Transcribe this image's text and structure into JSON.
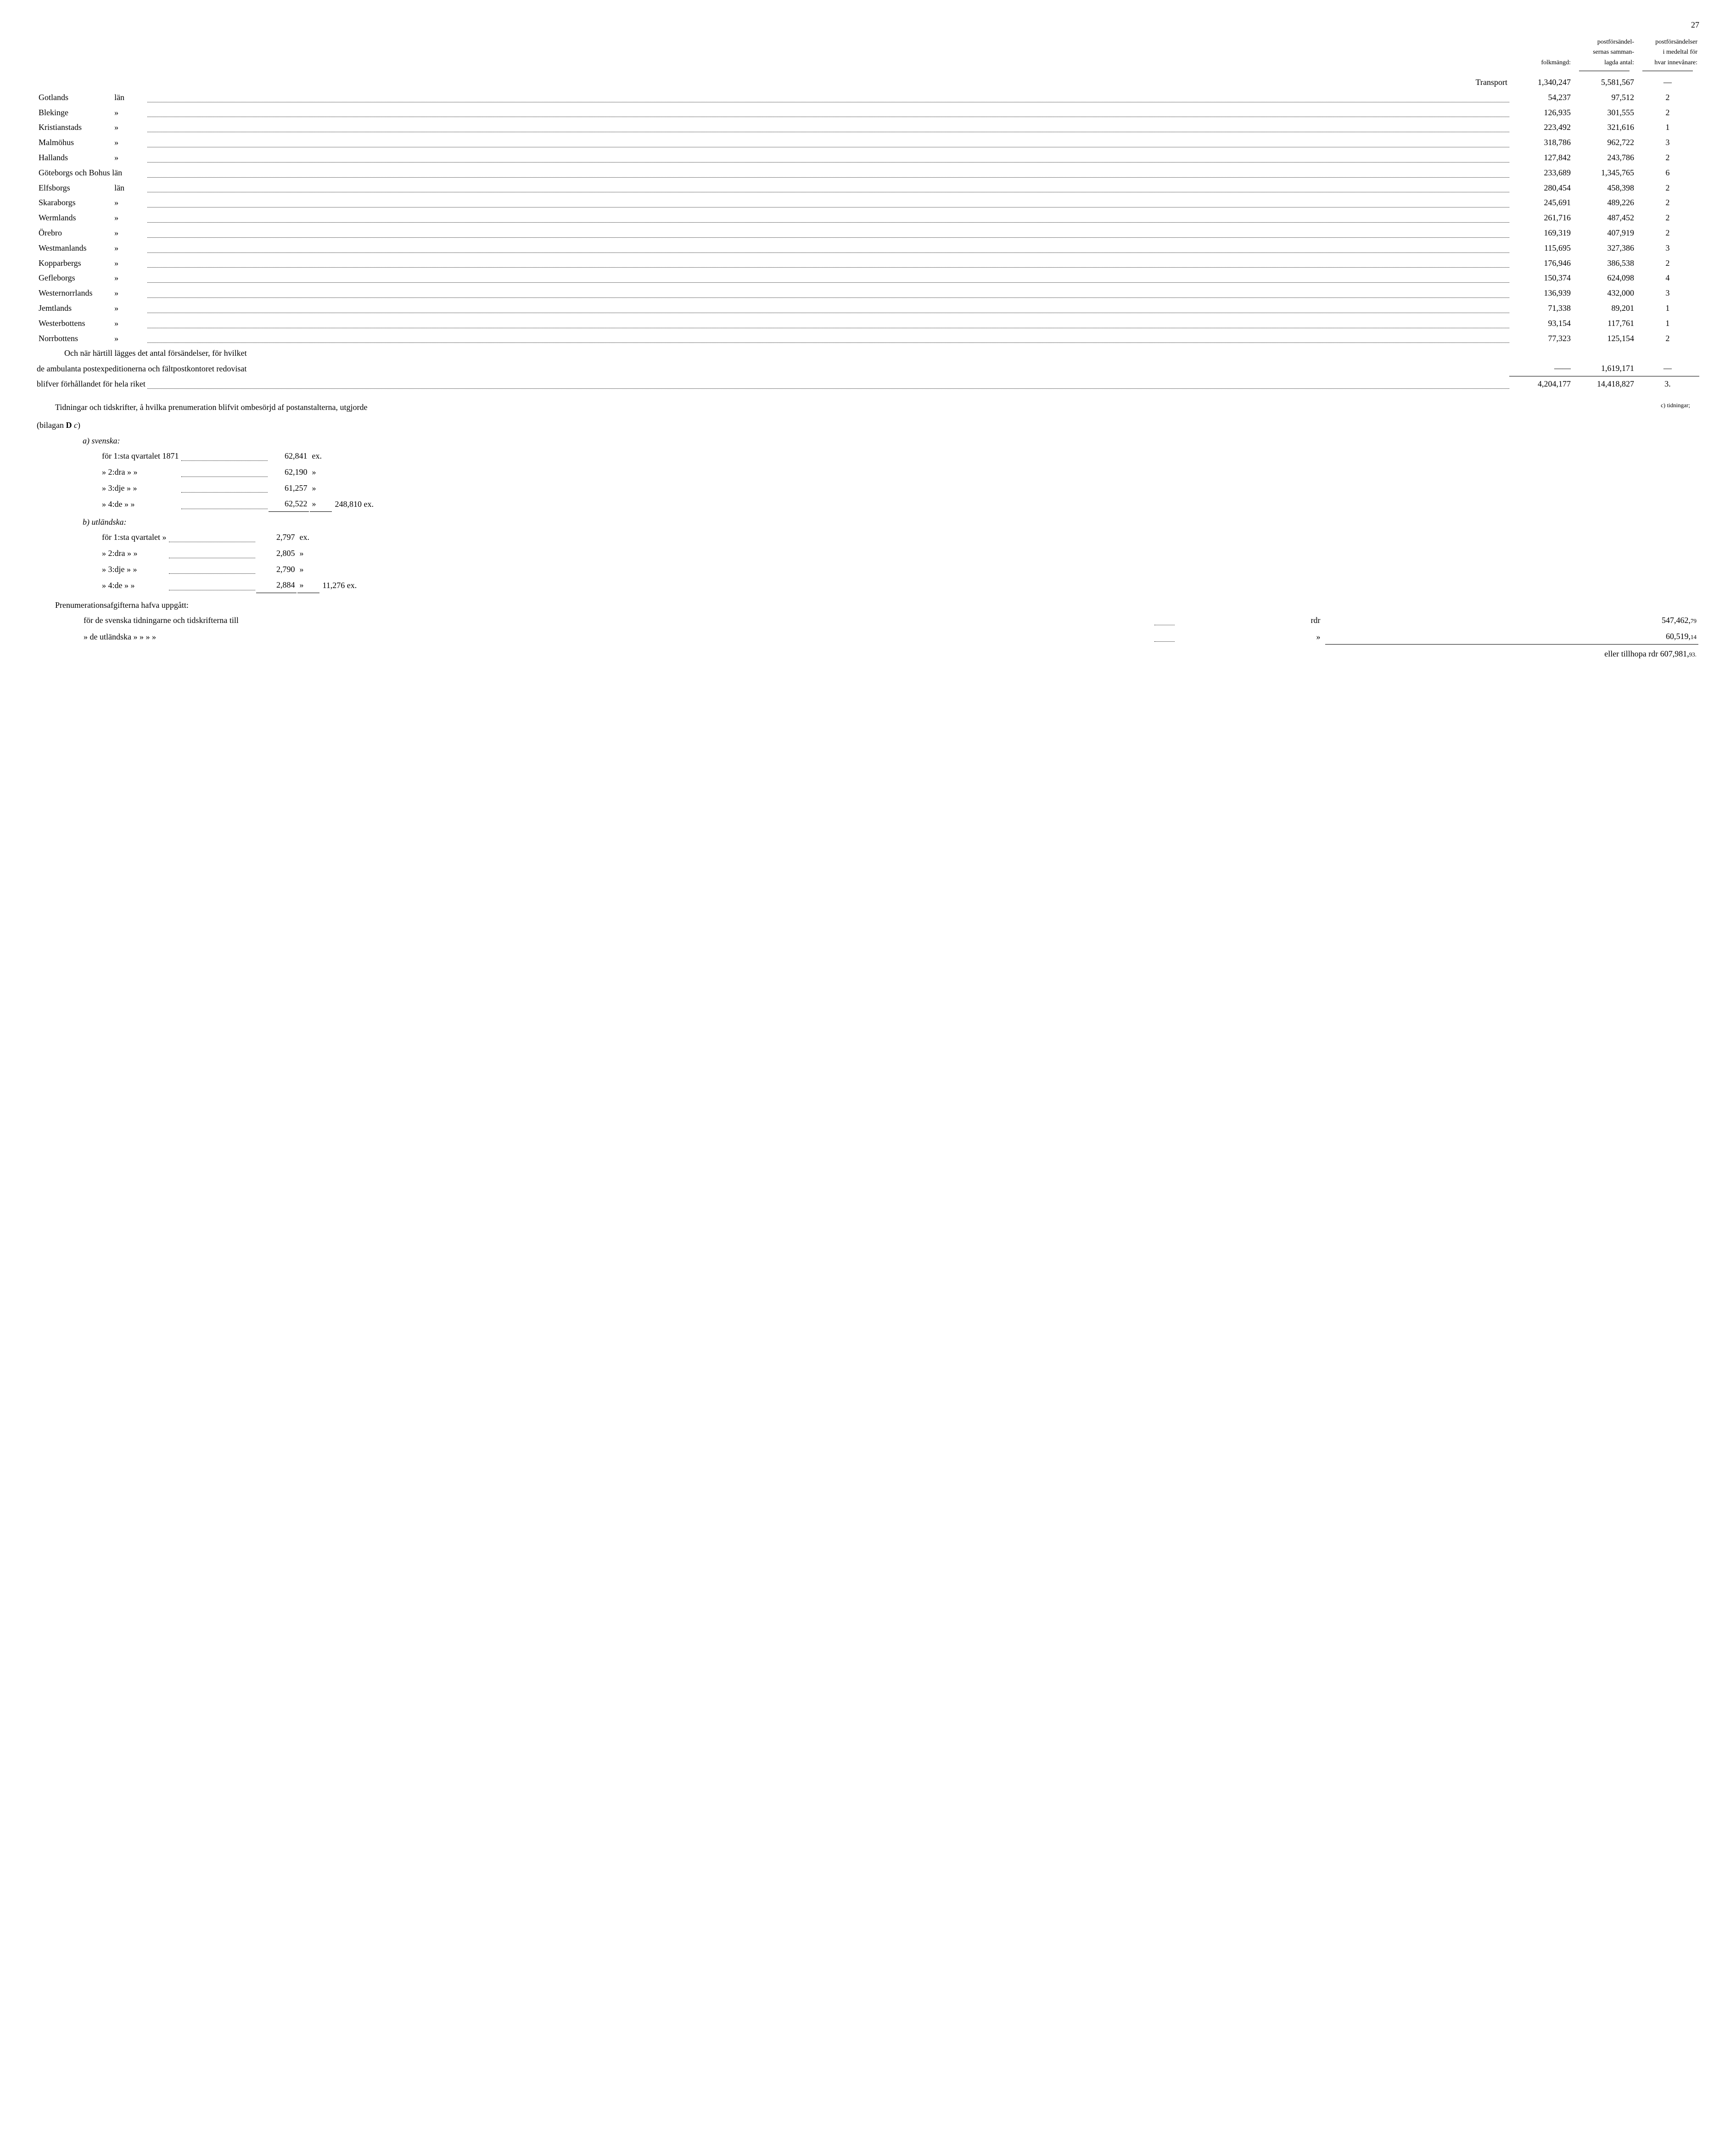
{
  "page_number": "27",
  "headers": {
    "col1": "folkmängd:",
    "col2": "postförsändel-\nsernas samman-\nlagda antal:",
    "col3": "postförsändelser\ni medeltal för\nhvar innevånare:"
  },
  "transport": {
    "label": "Transport",
    "c1": "1,340,247",
    "c2": "5,581,567",
    "c3": "—"
  },
  "rows": [
    {
      "a": "Gotlands",
      "b": "län",
      "c1": "54,237",
      "c2": "97,512",
      "c3": "2"
    },
    {
      "a": "Blekinge",
      "b": "»",
      "c1": "126,935",
      "c2": "301,555",
      "c3": "2"
    },
    {
      "a": "Kristianstads",
      "b": "»",
      "c1": "223,492",
      "c2": "321,616",
      "c3": "1"
    },
    {
      "a": "Malmöhus",
      "b": "»",
      "c1": "318,786",
      "c2": "962,722",
      "c3": "3"
    },
    {
      "a": "Hallands",
      "b": "»",
      "c1": "127,842",
      "c2": "243,786",
      "c3": "2"
    },
    {
      "a": "Göteborgs och Bohus län",
      "b": "",
      "c1": "233,689",
      "c2": "1,345,765",
      "c3": "6"
    },
    {
      "a": "Elfsborgs",
      "b": "län",
      "c1": "280,454",
      "c2": "458,398",
      "c3": "2"
    },
    {
      "a": "Skaraborgs",
      "b": "»",
      "c1": "245,691",
      "c2": "489,226",
      "c3": "2"
    },
    {
      "a": "Wermlands",
      "b": "»",
      "c1": "261,716",
      "c2": "487,452",
      "c3": "2"
    },
    {
      "a": "Örebro",
      "b": "»",
      "c1": "169,319",
      "c2": "407,919",
      "c3": "2"
    },
    {
      "a": "Westmanlands",
      "b": "»",
      "c1": "115,695",
      "c2": "327,386",
      "c3": "3"
    },
    {
      "a": "Kopparbergs",
      "b": "»",
      "c1": "176,946",
      "c2": "386,538",
      "c3": "2"
    },
    {
      "a": "Gefleborgs",
      "b": "»",
      "c1": "150,374",
      "c2": "624,098",
      "c3": "4"
    },
    {
      "a": "Westernorrlands",
      "b": "»",
      "c1": "136,939",
      "c2": "432,000",
      "c3": "3"
    },
    {
      "a": "Jemtlands",
      "b": "»",
      "c1": "71,338",
      "c2": "89,201",
      "c3": "1"
    },
    {
      "a": "Westerbottens",
      "b": "»",
      "c1": "93,154",
      "c2": "117,761",
      "c3": "1"
    },
    {
      "a": "Norrbottens",
      "b": "»",
      "c1": "77,323",
      "c2": "125,154",
      "c3": "2"
    }
  ],
  "note_lines": {
    "l1": "Och när härtill lägges det antal försändelser, för hvilket",
    "l2_pre": "de ambulanta postexpeditionerna och fältpostkontoret redovisat",
    "l2_c1": "——",
    "l2_c2": "1,619,171",
    "l2_c3": "—",
    "l3_pre": "blifver förhållandet för hela riket",
    "l3_c1": "4,204,177",
    "l3_c2": "14,418,827",
    "l3_c3": "3."
  },
  "paragraph": {
    "text": "Tidningar och tidskrifter, å hvilka prenumeration blifvit ombesörjd af postanstalterna, utgjorde",
    "ref": "(bilagan D c)",
    "margin_note": "c) tidningar;"
  },
  "svenska": {
    "label": "a) svenska:",
    "year": "1871",
    "q1": {
      "lbl": "för 1:sta qvartalet",
      "v": "62,841",
      "u": "ex."
    },
    "q2": {
      "lbl": "»   2:dra      »          »",
      "v": "62,190",
      "u": "»"
    },
    "q3": {
      "lbl": "»   3:dje      »          »",
      "v": "61,257",
      "u": "»"
    },
    "q4": {
      "lbl": "»   4:de       »          »",
      "v": "62,522",
      "u": "»"
    },
    "sum": "248,810 ex."
  },
  "utlandska": {
    "label": "b) utländska:",
    "q1": {
      "lbl": "för 1:sta qvartalet   »",
      "v": "2,797",
      "u": "ex."
    },
    "q2": {
      "lbl": "»   2:dra      »          »",
      "v": "2,805",
      "u": "»"
    },
    "q3": {
      "lbl": "»   3:dje      »          »",
      "v": "2,790",
      "u": "»"
    },
    "q4": {
      "lbl": "»   4:de       »          »",
      "v": "2,884",
      "u": "»"
    },
    "sum": "11,276 ex."
  },
  "fees": {
    "heading": "Prenumerationsafgifterna hafva uppgått:",
    "line1_pre": "för de svenska tidningarne och tidskrifterna till",
    "line1_unit": "rdr",
    "line1_val": "547,462,",
    "line1_frac": "79",
    "line2_pre": "»   de utländska         »             »             »           »",
    "line2_unit": "»",
    "line2_val": "60,519,",
    "line2_frac": "14",
    "total_pre": "eller tillhopa rdr",
    "total_val": "607,981,",
    "total_frac": "93."
  }
}
